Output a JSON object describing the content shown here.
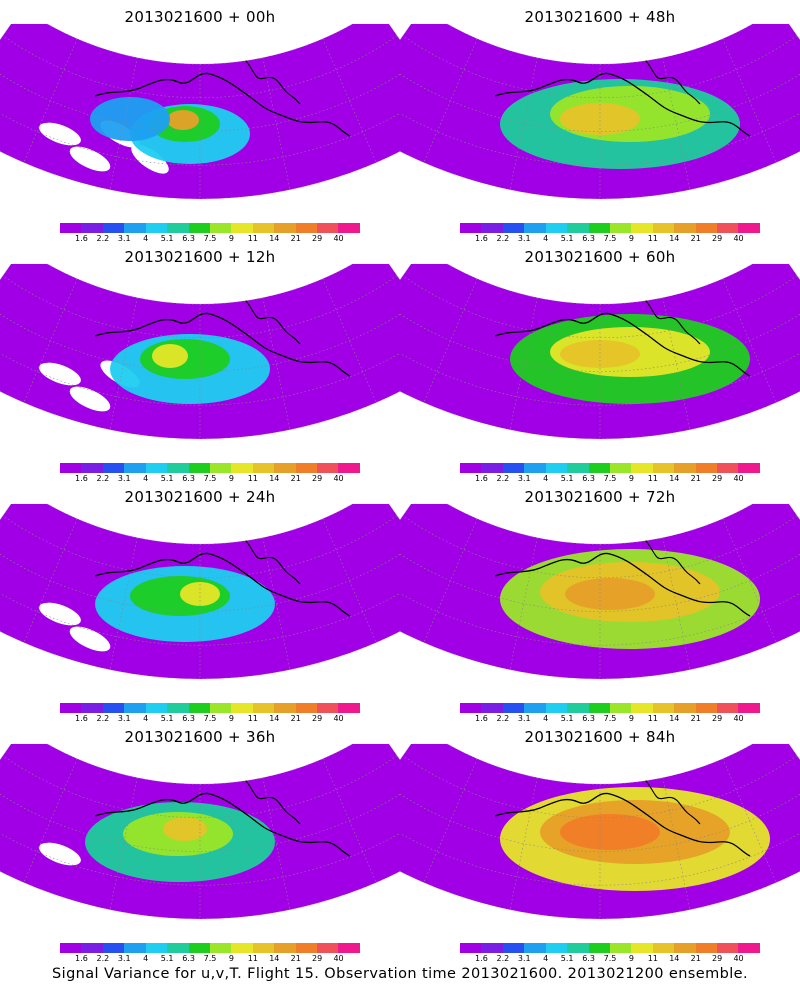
{
  "caption": "Signal Variance for u,v,T. Flight 15. Observation time 2013021600. 2013021200 ensemble.",
  "colorbar": {
    "colors": [
      "#a100e6",
      "#7a1ee6",
      "#2850f0",
      "#1ea0f0",
      "#1ecdf0",
      "#1ecd9b",
      "#1ecd1e",
      "#9be628",
      "#e6e628",
      "#e6c328",
      "#e6a028",
      "#f07d28",
      "#f0505a",
      "#f0198c"
    ],
    "labels": [
      "1.6",
      "2.2",
      "3.1",
      "4",
      "5.1",
      "6.3",
      "7.5",
      "9",
      "11",
      "14",
      "21",
      "29",
      "40"
    ]
  },
  "panels": [
    {
      "title": "2013021600 + 00h",
      "level": 0
    },
    {
      "title": "2013021600 + 48h",
      "level": 4
    },
    {
      "title": "2013021600 + 12h",
      "level": 1
    },
    {
      "title": "2013021600 + 60h",
      "level": 5
    },
    {
      "title": "2013021600 + 24h",
      "level": 2
    },
    {
      "title": "2013021600 + 72h",
      "level": 6
    },
    {
      "title": "2013021600 + 36h",
      "level": 3
    },
    {
      "title": "2013021600 + 84h",
      "level": 7
    }
  ]
}
